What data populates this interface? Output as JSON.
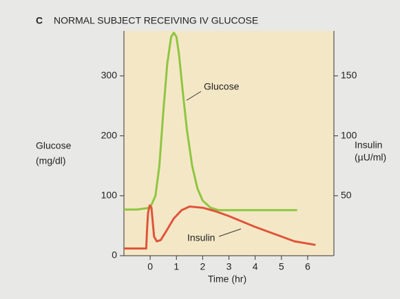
{
  "chart_data": {
    "type": "line",
    "panel": "C",
    "title": "NORMAL SUBJECT RECEIVING IV GLUCOSE",
    "xlabel": "Time (hr)",
    "ylabel": [
      "Glucose",
      "(mg/dl)"
    ],
    "y2label": [
      "Insulin",
      "(µU/ml)"
    ],
    "xlim": [
      -1,
      7
    ],
    "xticks": [
      0,
      1,
      2,
      3,
      4,
      5,
      6
    ],
    "ylim": [
      0,
      375
    ],
    "yticks": [
      0,
      100,
      200,
      300
    ],
    "y2lim": [
      0,
      187.5
    ],
    "y2ticks": [
      50,
      100,
      150
    ],
    "series": [
      {
        "name": "Glucose",
        "color": "#8dc63f",
        "x": [
          -1,
          -0.5,
          0,
          0.2,
          0.35,
          0.5,
          0.65,
          0.8,
          0.9,
          1.0,
          1.1,
          1.25,
          1.4,
          1.6,
          1.8,
          2.0,
          2.3,
          2.6,
          3,
          4,
          5,
          5.6
        ],
        "values": [
          77,
          77,
          80,
          100,
          150,
          240,
          320,
          365,
          372,
          365,
          335,
          270,
          210,
          150,
          112,
          92,
          80,
          76,
          76,
          76,
          76,
          76
        ]
      },
      {
        "name": "Insulin",
        "color": "#e0533a",
        "axis": "y2",
        "x": [
          -1,
          -0.15,
          -0.12,
          -0.08,
          -0.02,
          0.05,
          0.1,
          0.15,
          0.25,
          0.4,
          0.6,
          0.9,
          1.2,
          1.5,
          2,
          2.5,
          3,
          4,
          5,
          5.5,
          6.3
        ],
        "values": [
          6,
          6,
          22,
          36,
          42,
          40,
          28,
          16,
          12,
          13,
          20,
          31,
          38,
          41,
          40,
          37,
          33,
          24,
          16,
          12,
          9
        ]
      }
    ]
  }
}
